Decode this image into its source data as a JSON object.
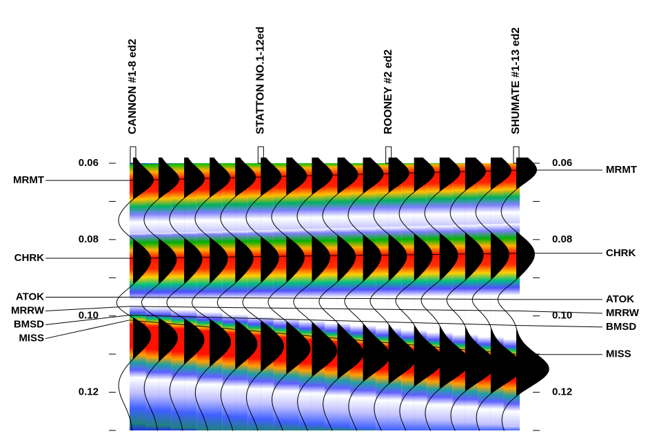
{
  "chart_data": {
    "type": "seismic",
    "wells": [
      "CANNON #1-8 ed2",
      "STATTON NO.1-12ed",
      "ROONEY #2 ed2",
      "SHUMATE #1-13 ed2"
    ],
    "ylim": [
      0.06,
      0.13
    ],
    "yticks": [
      0.06,
      0.08,
      {
        "value": 0.1,
        "label": "0.10"
      },
      0.12
    ],
    "minor_yticks": [
      0.07,
      0.09,
      0.11,
      0.13
    ],
    "horizons": [
      {
        "name": "MRMT",
        "left": 0.0645,
        "right": 0.0618
      },
      {
        "name": "CHRK",
        "left": 0.0849,
        "right": 0.0836
      },
      {
        "name": "ATOK",
        "left": 0.0951,
        "right": 0.0957
      },
      {
        "name": "MRRW",
        "left": 0.0975,
        "right": 0.0987
      },
      {
        "name": "BMSD",
        "left": 0.0998,
        "right": 0.1025
      },
      {
        "name": "MISS",
        "left": 0.1011,
        "right": 0.1101
      }
    ]
  }
}
